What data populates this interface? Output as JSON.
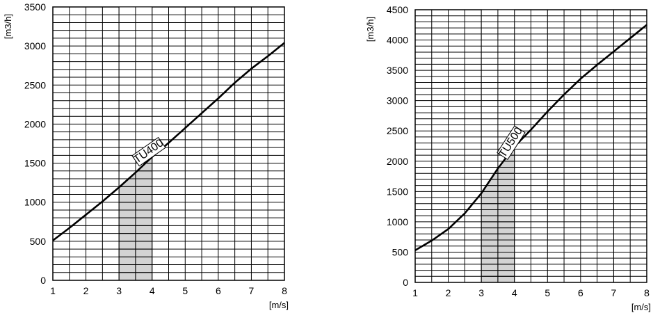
{
  "chart_data": [
    {
      "type": "line",
      "ylabel": "[m3/h]",
      "xlabel": "[m/s]",
      "xlim": [
        1,
        8
      ],
      "ylim": [
        0,
        3500
      ],
      "x_ticks": [
        1,
        2,
        3,
        4,
        5,
        6,
        7,
        8
      ],
      "y_ticks": [
        0,
        500,
        1000,
        1500,
        2000,
        2500,
        3000,
        3500
      ],
      "grid": true,
      "highlight_range": [
        3,
        4
      ],
      "highlight_divider": 3.5,
      "series": [
        {
          "name": "TU400",
          "x": [
            1,
            1.5,
            2,
            2.5,
            3,
            3.5,
            4,
            4.5,
            5,
            5.5,
            6,
            6.5,
            7,
            7.5,
            8
          ],
          "y": [
            510,
            670,
            840,
            1010,
            1190,
            1380,
            1580,
            1760,
            1950,
            2140,
            2330,
            2530,
            2710,
            2870,
            3040
          ]
        }
      ]
    },
    {
      "type": "line",
      "ylabel": "[m3/h]",
      "xlabel": "[m/s]",
      "xlim": [
        1,
        8
      ],
      "ylim": [
        0,
        4500
      ],
      "x_ticks": [
        1,
        2,
        3,
        4,
        5,
        6,
        7,
        8
      ],
      "y_ticks": [
        0,
        500,
        1000,
        1500,
        2000,
        2500,
        3000,
        3500,
        4000,
        4500
      ],
      "grid": true,
      "highlight_range": [
        3,
        4
      ],
      "highlight_divider": 3.5,
      "series": [
        {
          "name": "TU500",
          "x": [
            1,
            1.5,
            2,
            2.5,
            3,
            3.5,
            4,
            4.5,
            5,
            5.5,
            6,
            6.5,
            7,
            7.5,
            8
          ],
          "y": [
            530,
            690,
            880,
            1140,
            1470,
            1880,
            2240,
            2520,
            2820,
            3100,
            3360,
            3590,
            3810,
            4030,
            4250
          ]
        }
      ]
    }
  ]
}
